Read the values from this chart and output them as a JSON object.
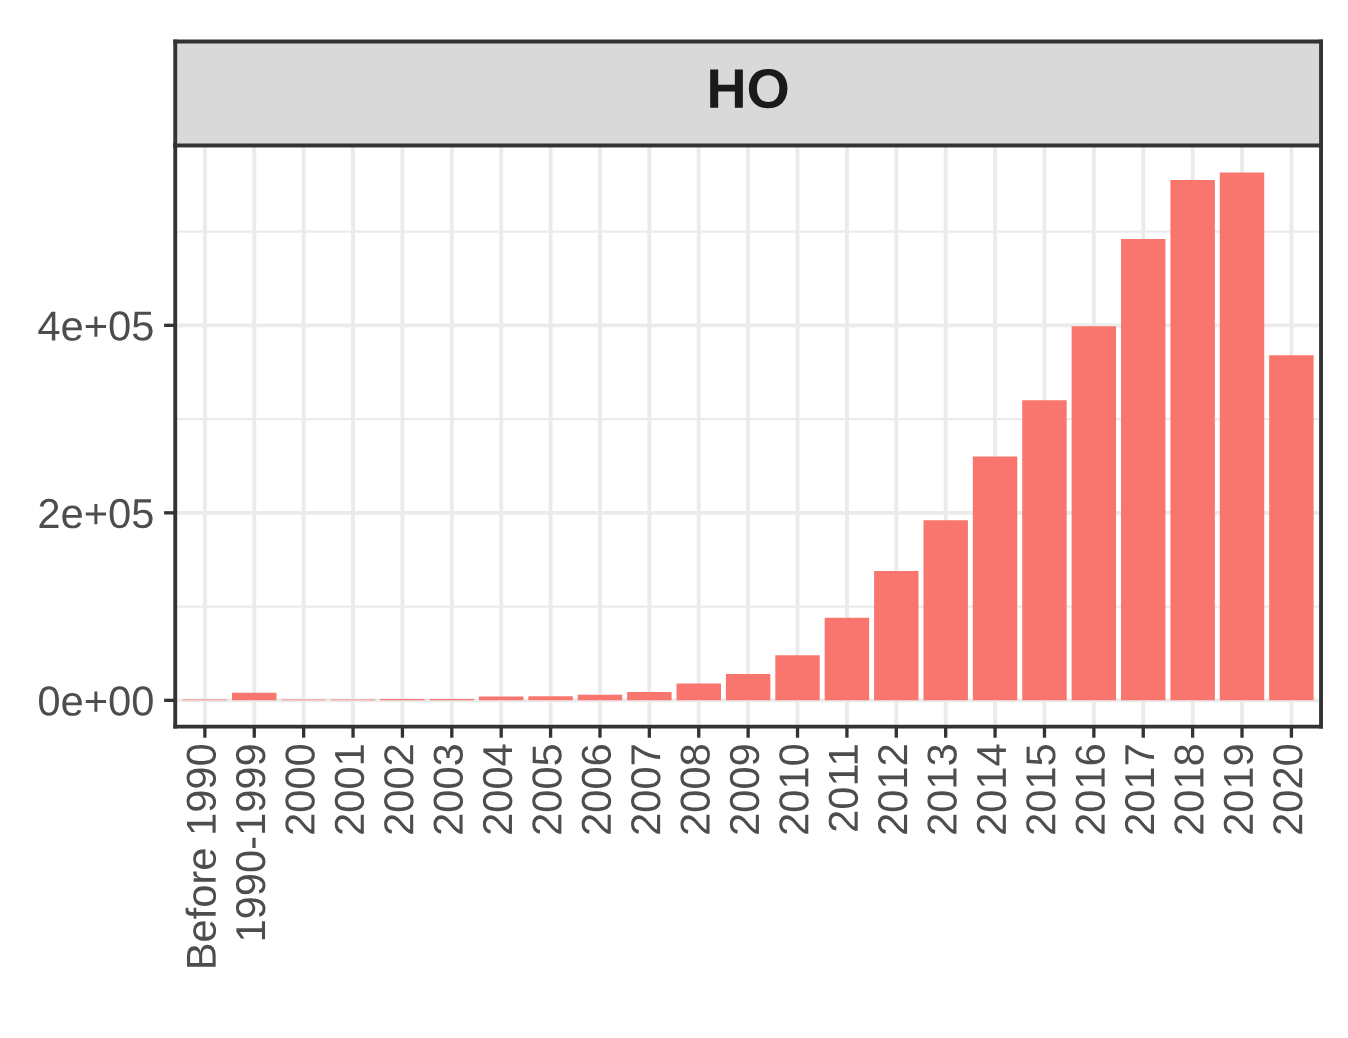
{
  "chart_data": {
    "type": "bar",
    "title": "HO",
    "categories": [
      "Before 1990",
      "1990-1999",
      "2000",
      "2001",
      "2002",
      "2003",
      "2004",
      "2005",
      "2006",
      "2007",
      "2008",
      "2009",
      "2010",
      "2011",
      "2012",
      "2013",
      "2014",
      "2015",
      "2016",
      "2017",
      "2018",
      "2019",
      "2020"
    ],
    "values": [
      1000,
      8000,
      1000,
      1000,
      1500,
      1500,
      4000,
      4500,
      6000,
      9000,
      18000,
      28000,
      48000,
      88000,
      138000,
      192000,
      260000,
      320000,
      399000,
      492000,
      555000,
      563000,
      368000
    ],
    "color": "#f8766d",
    "ylim": [
      -28000,
      592000
    ],
    "yticks": [
      {
        "value": 0,
        "label": "0e+00"
      },
      {
        "value": 200000,
        "label": "2e+05"
      },
      {
        "value": 400000,
        "label": "4e+05"
      }
    ],
    "grid": true
  }
}
